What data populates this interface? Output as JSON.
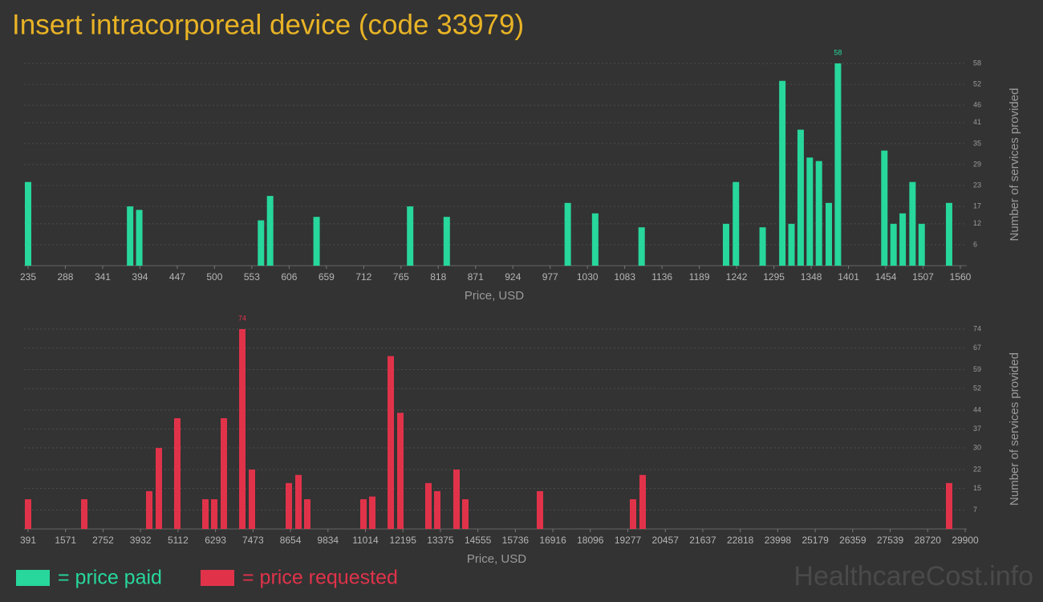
{
  "title": "Insert intracorporeal device (code 33979)",
  "watermark": "HealthcareCost.info",
  "chart_data": [
    {
      "type": "bar",
      "x_label": "Price, USD",
      "y_label": "Number of services provided",
      "x": [
        235,
        380,
        393,
        566,
        579,
        645,
        778,
        830,
        1002,
        1041,
        1107,
        1227,
        1241,
        1279,
        1307,
        1320,
        1333,
        1346,
        1359,
        1373,
        1386,
        1452,
        1465,
        1478,
        1492,
        1505,
        1544
      ],
      "series": [
        {
          "name": "= price paid",
          "color": "#27d79b",
          "values": [
            24,
            17,
            16,
            13,
            20,
            14,
            17,
            14,
            18,
            15,
            11,
            12,
            24,
            11,
            53,
            12,
            39,
            31,
            30,
            18,
            58,
            33,
            12,
            15,
            24,
            12,
            18
          ]
        }
      ],
      "xlim": [
        235,
        1560
      ],
      "xticks": [
        235,
        288,
        341,
        394,
        447,
        500,
        553,
        606,
        659,
        712,
        765,
        818,
        871,
        924,
        977,
        1030,
        1083,
        1136,
        1189,
        1242,
        1295,
        1348,
        1401,
        1454,
        1507,
        1560
      ],
      "ylim": [
        0,
        58
      ],
      "yticks": [
        6,
        12,
        17,
        23,
        29,
        35,
        41,
        46,
        52,
        58
      ],
      "grid": true
    },
    {
      "type": "bar",
      "x_label": "Price, USD",
      "y_label": "Number of services provided",
      "x": [
        391,
        2160,
        4206,
        4509,
        5090,
        5975,
        6253,
        6556,
        7137,
        7440,
        8602,
        8905,
        9183,
        10952,
        11230,
        11811,
        12114,
        12998,
        13276,
        13882,
        14160,
        16510,
        19441,
        19744,
        29395
      ],
      "series": [
        {
          "name": "= price requested",
          "color": "#e0334a",
          "values": [
            11,
            11,
            14,
            30,
            41,
            11,
            11,
            41,
            74,
            22,
            17,
            20,
            11,
            11,
            12,
            64,
            43,
            17,
            14,
            22,
            11,
            14,
            11,
            20,
            17
          ]
        }
      ],
      "xlim": [
        391,
        29900
      ],
      "xticks": [
        391,
        1571,
        2752,
        3932,
        5112,
        6293,
        7473,
        8654,
        9834,
        11014,
        12195,
        13375,
        14555,
        15736,
        16916,
        18096,
        19277,
        20457,
        21637,
        22818,
        23998,
        25179,
        26359,
        27539,
        28720,
        29900
      ],
      "ylim": [
        0,
        74
      ],
      "yticks": [
        7,
        15,
        22,
        30,
        37,
        44,
        52,
        59,
        67,
        74
      ],
      "grid": true
    }
  ]
}
